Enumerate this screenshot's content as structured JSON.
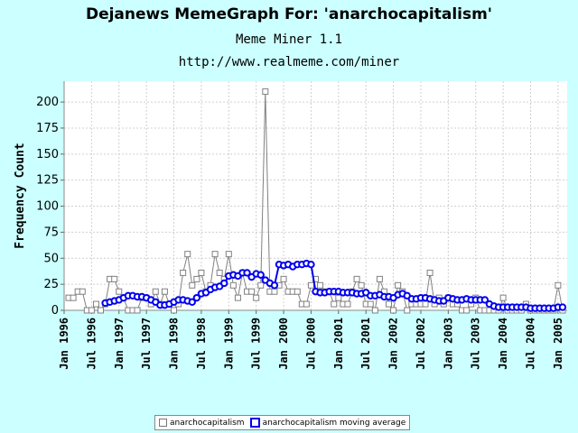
{
  "header": {
    "title": "Dejanews MemeGraph For: 'anarchocapitalism'",
    "subtitle": "Meme Miner 1.1",
    "url": "http://www.realmeme.com/miner"
  },
  "chart_data": {
    "type": "line",
    "ylabel": "Frequency Count",
    "ylim": [
      0,
      220
    ],
    "yticks": [
      0,
      25,
      50,
      75,
      100,
      125,
      150,
      175,
      200
    ],
    "xlim": [
      "1996-01",
      "2005-03"
    ],
    "xticks": [
      {
        "date": "1996-01",
        "label": "Jan 1996"
      },
      {
        "date": "1996-07",
        "label": "Jul 1996"
      },
      {
        "date": "1997-01",
        "label": "Jan 1997"
      },
      {
        "date": "1997-07",
        "label": "Jul 1997"
      },
      {
        "date": "1998-01",
        "label": "Jan 1998"
      },
      {
        "date": "1998-07",
        "label": "Jul 1998"
      },
      {
        "date": "1999-01",
        "label": "Jan 1999"
      },
      {
        "date": "1999-07",
        "label": "Jul 1999"
      },
      {
        "date": "2000-01",
        "label": "Jan 2000"
      },
      {
        "date": "2000-07",
        "label": "Jul 2000"
      },
      {
        "date": "2001-01",
        "label": "Jan 2001"
      },
      {
        "date": "2001-07",
        "label": "Jul 2001"
      },
      {
        "date": "2002-01",
        "label": "Jan 2002"
      },
      {
        "date": "2002-07",
        "label": "Jul 2002"
      },
      {
        "date": "2003-01",
        "label": "Jan 2003"
      },
      {
        "date": "2003-07",
        "label": "Jul 2003"
      },
      {
        "date": "2004-01",
        "label": "Jan 2004"
      },
      {
        "date": "2004-07",
        "label": "Jul 2004"
      },
      {
        "date": "2005-01",
        "label": "Jan 2005"
      }
    ],
    "grid": true,
    "legend_position": "bottom",
    "series": [
      {
        "name": "anarchocapitalism",
        "color": "#808080",
        "marker": "square",
        "x": [
          "1996-02",
          "1996-03",
          "1996-04",
          "1996-05",
          "1996-06",
          "1996-07",
          "1996-08",
          "1996-09",
          "1996-10",
          "1996-11",
          "1996-12",
          "1997-01",
          "1997-02",
          "1997-03",
          "1997-04",
          "1997-05",
          "1997-06",
          "1997-07",
          "1997-08",
          "1997-09",
          "1997-10",
          "1997-11",
          "1997-12",
          "1998-01",
          "1998-02",
          "1998-03",
          "1998-04",
          "1998-05",
          "1998-06",
          "1998-07",
          "1998-08",
          "1998-09",
          "1998-10",
          "1998-11",
          "1998-12",
          "1999-01",
          "1999-02",
          "1999-03",
          "1999-04",
          "1999-05",
          "1999-06",
          "1999-07",
          "1999-08",
          "1999-09",
          "1999-10",
          "1999-11",
          "1999-12",
          "2000-01",
          "2000-02",
          "2000-03",
          "2000-04",
          "2000-05",
          "2000-06",
          "2000-07",
          "2000-08",
          "2000-09",
          "2000-10",
          "2000-11",
          "2000-12",
          "2001-01",
          "2001-02",
          "2001-03",
          "2001-04",
          "2001-05",
          "2001-06",
          "2001-07",
          "2001-08",
          "2001-09",
          "2001-10",
          "2001-11",
          "2001-12",
          "2002-01",
          "2002-02",
          "2002-03",
          "2002-04",
          "2002-05",
          "2002-06",
          "2002-07",
          "2002-08",
          "2002-09",
          "2002-10",
          "2002-11",
          "2002-12",
          "2003-01",
          "2003-02",
          "2003-03",
          "2003-04",
          "2003-05",
          "2003-06",
          "2003-07",
          "2003-08",
          "2003-09",
          "2003-10",
          "2003-11",
          "2003-12",
          "2004-01",
          "2004-02",
          "2004-03",
          "2004-04",
          "2004-05",
          "2004-06",
          "2004-07",
          "2004-08",
          "2004-09",
          "2004-10",
          "2004-11",
          "2004-12",
          "2005-01",
          "2005-02"
        ],
        "values": [
          12,
          12,
          18,
          18,
          0,
          0,
          6,
          0,
          6,
          30,
          30,
          18,
          12,
          0,
          0,
          0,
          12,
          12,
          6,
          18,
          6,
          18,
          6,
          0,
          6,
          36,
          54,
          24,
          30,
          36,
          18,
          24,
          54,
          36,
          30,
          54,
          24,
          12,
          36,
          18,
          18,
          12,
          24,
          210,
          18,
          18,
          24,
          30,
          18,
          18,
          18,
          6,
          6,
          24,
          30,
          24,
          18,
          18,
          6,
          12,
          6,
          6,
          18,
          30,
          24,
          6,
          6,
          0,
          30,
          18,
          6,
          0,
          24,
          18,
          0,
          6,
          6,
          6,
          6,
          36,
          6,
          12,
          6,
          12,
          6,
          6,
          0,
          0,
          6,
          12,
          0,
          0,
          0,
          0,
          0,
          12,
          0,
          0,
          0,
          0,
          6,
          0,
          0,
          0,
          0,
          0,
          0,
          24,
          0
        ]
      },
      {
        "name": "anarchocapitalism moving average",
        "color": "#0000ee",
        "marker": "circle",
        "x": [
          "1996-10",
          "1996-11",
          "1996-12",
          "1997-01",
          "1997-02",
          "1997-03",
          "1997-04",
          "1997-05",
          "1997-06",
          "1997-07",
          "1997-08",
          "1997-09",
          "1997-10",
          "1997-11",
          "1997-12",
          "1998-01",
          "1998-02",
          "1998-03",
          "1998-04",
          "1998-05",
          "1998-06",
          "1998-07",
          "1998-08",
          "1998-09",
          "1998-10",
          "1998-11",
          "1998-12",
          "1999-01",
          "1999-02",
          "1999-03",
          "1999-04",
          "1999-05",
          "1999-06",
          "1999-07",
          "1999-08",
          "1999-09",
          "1999-10",
          "1999-11",
          "1999-12",
          "2000-01",
          "2000-02",
          "2000-03",
          "2000-04",
          "2000-05",
          "2000-06",
          "2000-07",
          "2000-08",
          "2000-09",
          "2000-10",
          "2000-11",
          "2000-12",
          "2001-01",
          "2001-02",
          "2001-03",
          "2001-04",
          "2001-05",
          "2001-06",
          "2001-07",
          "2001-08",
          "2001-09",
          "2001-10",
          "2001-11",
          "2001-12",
          "2002-01",
          "2002-02",
          "2002-03",
          "2002-04",
          "2002-05",
          "2002-06",
          "2002-07",
          "2002-08",
          "2002-09",
          "2002-10",
          "2002-11",
          "2002-12",
          "2003-01",
          "2003-02",
          "2003-03",
          "2003-04",
          "2003-05",
          "2003-06",
          "2003-07",
          "2003-08",
          "2003-09",
          "2003-10",
          "2003-11",
          "2003-12",
          "2004-01",
          "2004-02",
          "2004-03",
          "2004-04",
          "2004-05",
          "2004-06",
          "2004-07",
          "2004-08",
          "2004-09",
          "2004-10",
          "2004-11",
          "2004-12",
          "2005-01",
          "2005-02"
        ],
        "values": [
          7,
          8,
          9,
          10,
          12,
          14,
          14,
          13,
          13,
          12,
          10,
          8,
          5,
          5,
          6,
          8,
          10,
          10,
          9,
          8,
          12,
          16,
          17,
          20,
          22,
          23,
          26,
          33,
          34,
          33,
          36,
          36,
          32,
          35,
          34,
          29,
          26,
          24,
          44,
          43,
          44,
          42,
          44,
          44,
          45,
          44,
          18,
          17,
          17,
          18,
          18,
          18,
          17,
          17,
          17,
          16,
          16,
          17,
          14,
          14,
          15,
          13,
          13,
          12,
          15,
          16,
          14,
          11,
          11,
          12,
          12,
          11,
          10,
          9,
          9,
          12,
          11,
          10,
          10,
          11,
          10,
          10,
          10,
          10,
          6,
          4,
          3,
          3,
          3,
          3,
          3,
          3,
          3,
          2,
          2,
          2,
          2,
          2,
          2,
          3,
          3
        ]
      }
    ]
  }
}
